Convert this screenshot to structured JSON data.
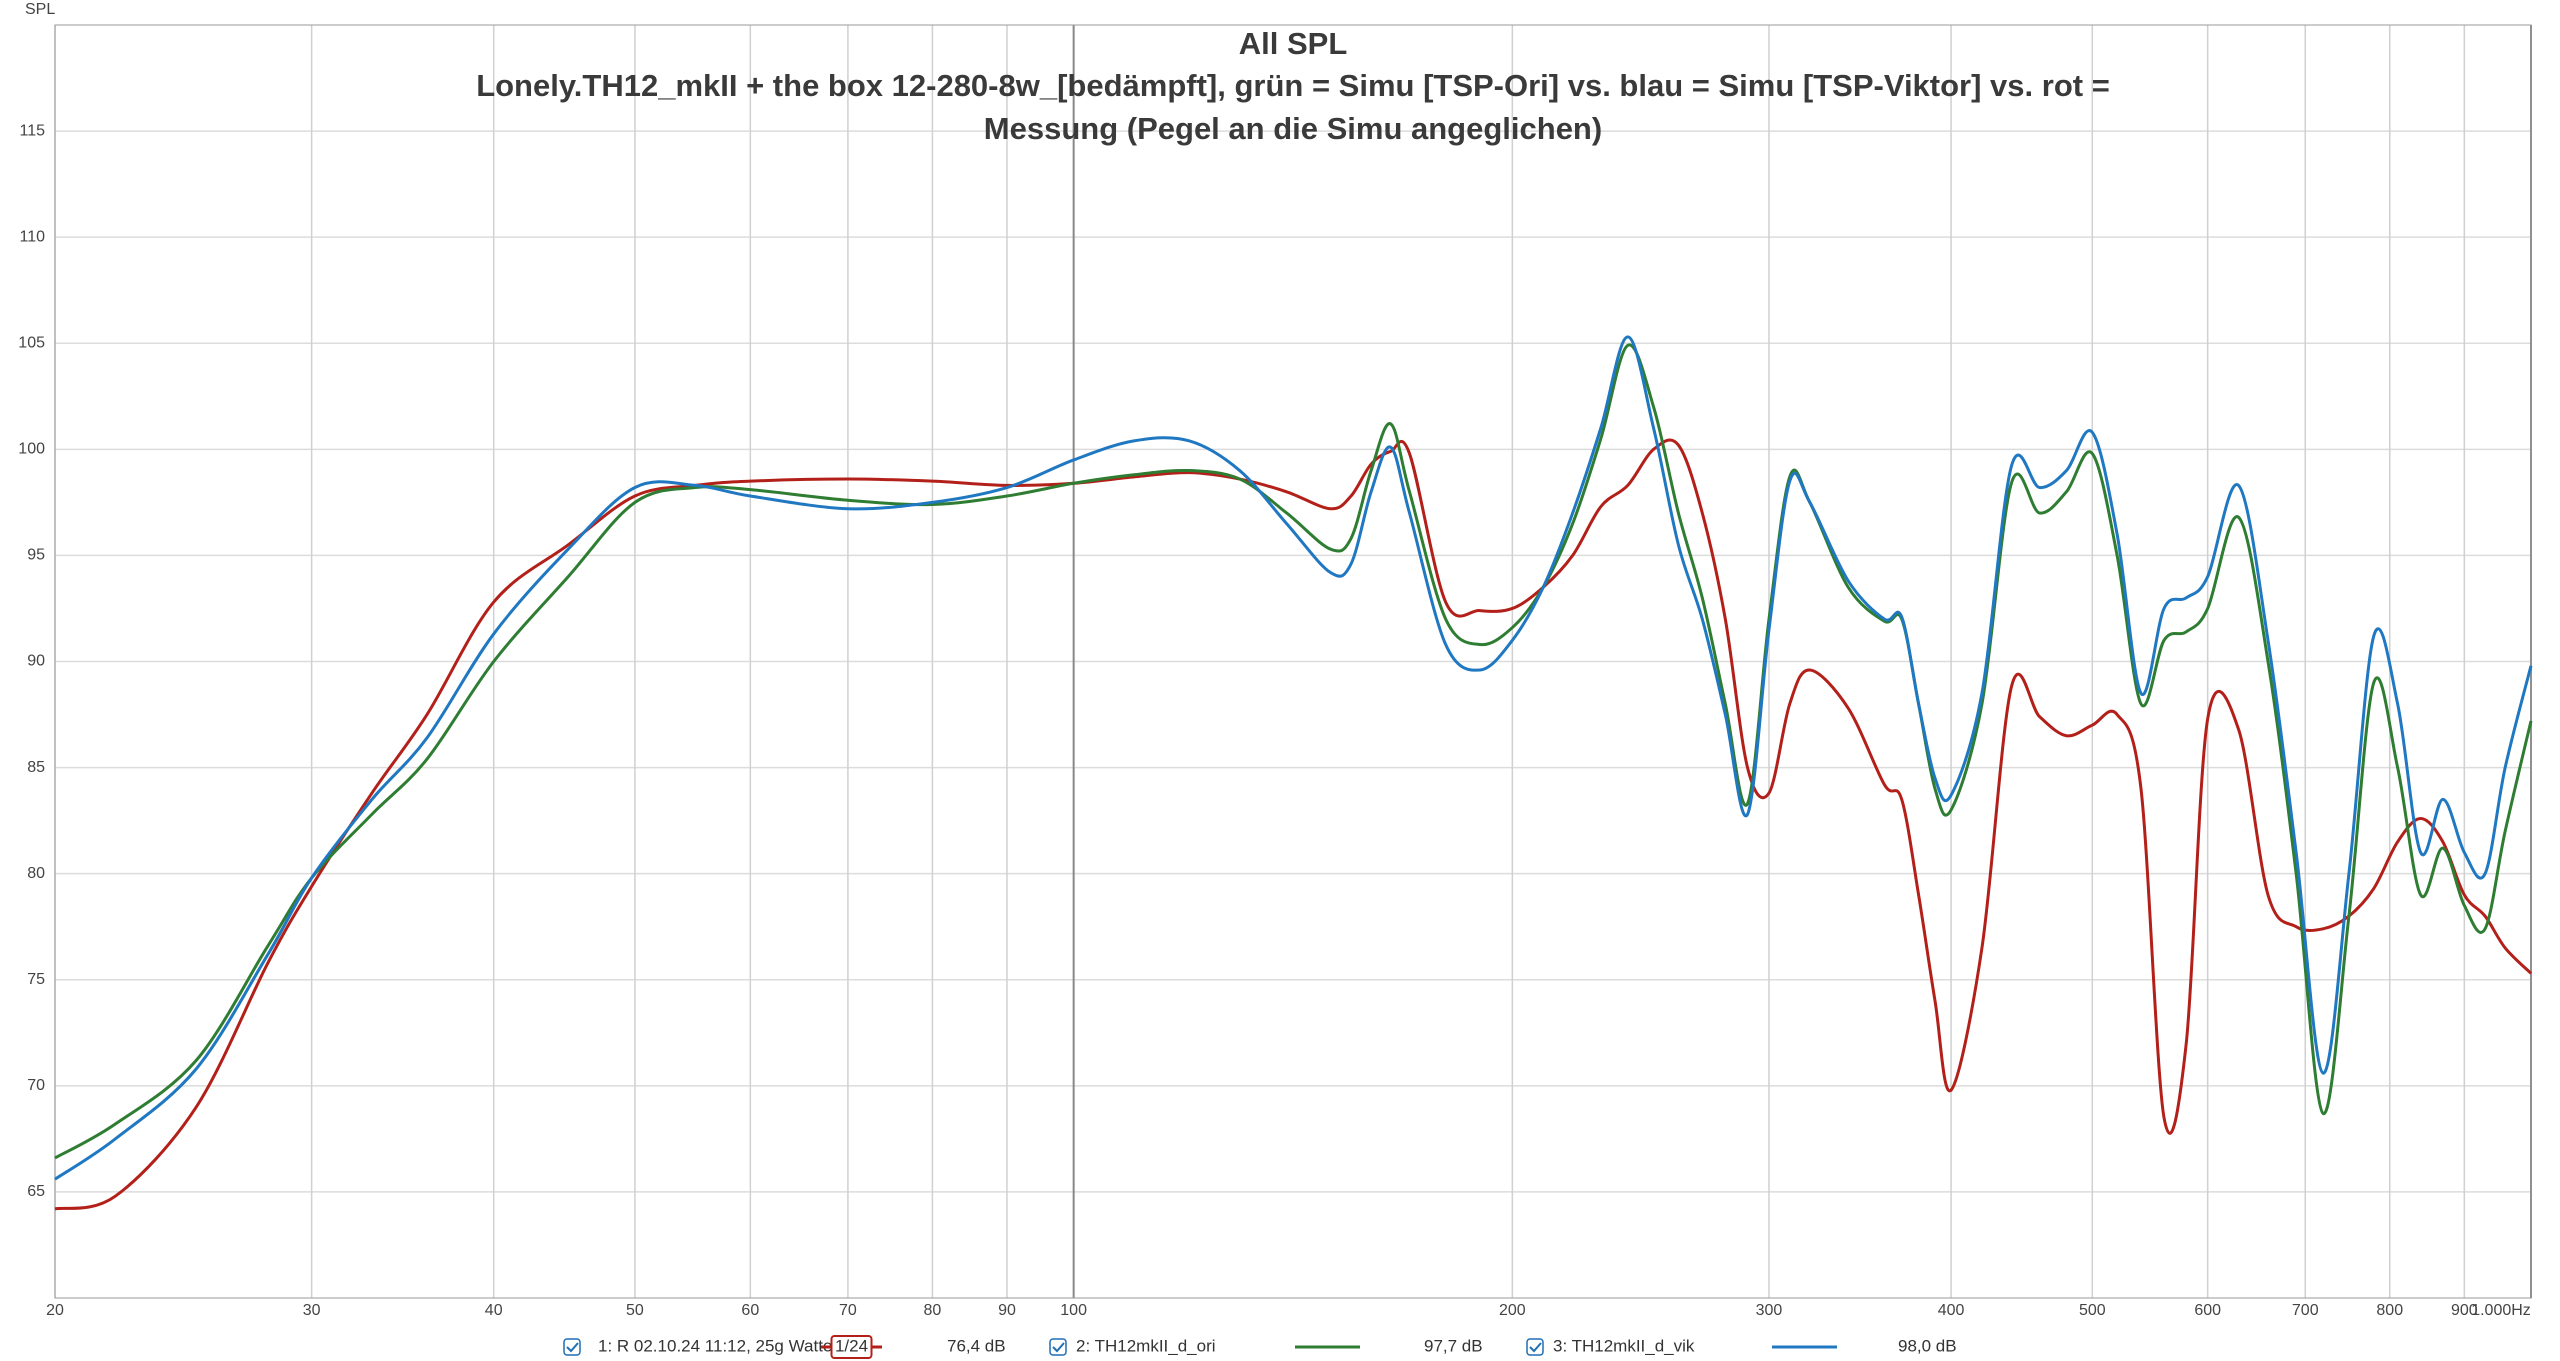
{
  "chart_data": {
    "type": "line",
    "title": "All SPL",
    "subtitle": [
      "Lonely.TH12_mkII + the box 12-280-8w_[bedämpft], grün = Simu [TSP-Ori] vs. blau = Simu [TSP-Viktor] vs. rot =",
      "Messung (Pegel an die Simu angeglichen)"
    ],
    "y_label": "SPL",
    "xscale": "log",
    "grid": true,
    "xlim": [
      20,
      1000
    ],
    "ylim": [
      60,
      120
    ],
    "xticks": [
      20,
      30,
      40,
      50,
      60,
      70,
      80,
      90,
      100,
      200,
      300,
      400,
      500,
      600,
      700,
      800,
      900,
      {
        "value": 1000,
        "label": "1.000Hz"
      }
    ],
    "yticks": [
      65,
      70,
      75,
      80,
      85,
      90,
      95,
      100,
      105,
      110,
      115
    ],
    "x": [
      20,
      22,
      25,
      28,
      30,
      33,
      36,
      40,
      45,
      50,
      55,
      60,
      70,
      80,
      90,
      100,
      110,
      120,
      130,
      140,
      150,
      155,
      160,
      165,
      170,
      180,
      190,
      200,
      210,
      220,
      230,
      240,
      250,
      260,
      270,
      280,
      290,
      300,
      310,
      320,
      340,
      360,
      370,
      380,
      390,
      400,
      420,
      440,
      460,
      480,
      500,
      520,
      540,
      560,
      580,
      600,
      630,
      660,
      690,
      720,
      750,
      780,
      810,
      840,
      870,
      900,
      930,
      960,
      1000
    ],
    "series": [
      {
        "name": "1: R 02.10.24 11:12, 25g Watte",
        "smoothing": "1/24",
        "level": "76,4 dB",
        "color": "#b3201a",
        "values": [
          64.2,
          64.8,
          69,
          75.8,
          79.4,
          83.8,
          87.5,
          92.8,
          95.5,
          97.8,
          98.3,
          98.5,
          98.6,
          98.5,
          98.3,
          98.4,
          98.7,
          98.9,
          98.6,
          98.0,
          97.2,
          97.8,
          99.3,
          99.9,
          99.8,
          92.8,
          92.4,
          92.5,
          93.5,
          95,
          97.3,
          98.3,
          100,
          100.2,
          97,
          92,
          85,
          83.8,
          88,
          89.6,
          87.8,
          84.2,
          83.5,
          79,
          74,
          69.8,
          76.5,
          88.8,
          87.4,
          86.5,
          87,
          87.5,
          84,
          68.5,
          72,
          87.3,
          86.8,
          79,
          77.5,
          77.4,
          78,
          79.3,
          81.5,
          82.6,
          81.5,
          79,
          78,
          76.5,
          75.3
        ]
      },
      {
        "name": "2: TH12mkII_d_ori",
        "level": "97,7 dB",
        "color": "#2e7d32",
        "values": [
          66.6,
          68.2,
          71.2,
          76.6,
          79.8,
          82.8,
          85.4,
          90,
          94,
          97.5,
          98.2,
          98.1,
          97.6,
          97.4,
          97.8,
          98.4,
          98.8,
          99,
          98.6,
          97,
          95.3,
          95.8,
          99,
          101.2,
          98,
          92,
          90.8,
          91.6,
          93.5,
          96.5,
          100.5,
          104.9,
          102,
          97,
          93,
          88,
          83.3,
          92,
          98.7,
          97.5,
          93.5,
          91.9,
          92,
          88,
          84,
          83,
          88,
          98.4,
          97,
          98,
          99.8,
          95,
          88,
          91,
          91.4,
          92.5,
          96.8,
          90,
          80,
          68.7,
          78,
          89,
          85,
          79,
          81.2,
          78.5,
          77.4,
          82,
          87.2
        ]
      },
      {
        "name": "3: TH12mkII_d_vik",
        "level": "98,0 dB",
        "color": "#1f78c1",
        "values": [
          65.6,
          67.5,
          70.8,
          76.2,
          79.8,
          83.5,
          86.4,
          91.3,
          95.3,
          98.2,
          98.3,
          97.8,
          97.2,
          97.5,
          98.2,
          99.5,
          100.4,
          100.4,
          99,
          96.5,
          94.2,
          94.6,
          98,
          100.1,
          97,
          90.8,
          89.6,
          91,
          93.5,
          97,
          101,
          105.3,
          101,
          95.5,
          92,
          87.5,
          82.8,
          91.5,
          98.5,
          97.5,
          93.8,
          92,
          92.1,
          88,
          84.5,
          83.7,
          88.5,
          99.2,
          98.2,
          99,
          100.8,
          96,
          88.5,
          92.5,
          93,
          94,
          98.3,
          91,
          81,
          70.6,
          80,
          91.2,
          88,
          81,
          83.5,
          81,
          80,
          85,
          89.8
        ]
      }
    ]
  }
}
